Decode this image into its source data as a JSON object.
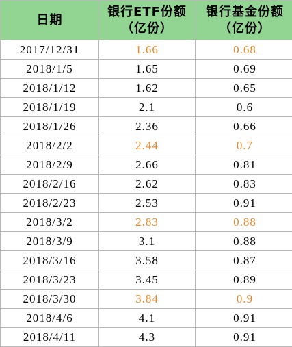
{
  "table": {
    "header": [
      [
        "日期"
      ],
      [
        "银行ETF份额",
        "（亿份）"
      ],
      [
        "银行基金份额",
        "（亿份）"
      ]
    ],
    "header_color": "#92d492",
    "rows": [
      {
        "cells": [
          "2017/12/31",
          1.66,
          0.68
        ],
        "color": "#e0892e"
      },
      {
        "cells": [
          "2018/1/5",
          1.65,
          0.69
        ],
        "color": "#000000"
      },
      {
        "cells": [
          "2018/1/12",
          1.62,
          0.65
        ],
        "color": "#000000"
      },
      {
        "cells": [
          "2018/1/19",
          2.1,
          0.6
        ],
        "color": "#000000"
      },
      {
        "cells": [
          "2018/1/26",
          2.36,
          0.66
        ],
        "color": "#000000"
      },
      {
        "cells": [
          "2018/2/2",
          2.44,
          0.7
        ],
        "color": "#e0892e"
      },
      {
        "cells": [
          "2018/2/9",
          2.66,
          0.81
        ],
        "color": "#000000"
      },
      {
        "cells": [
          "2018/2/16",
          2.62,
          0.83
        ],
        "color": "#000000"
      },
      {
        "cells": [
          "2018/2/23",
          2.53,
          0.91
        ],
        "color": "#000000"
      },
      {
        "cells": [
          "2018/3/2",
          2.83,
          0.88
        ],
        "color": "#e0892e"
      },
      {
        "cells": [
          "2018/3/9",
          3.1,
          0.88
        ],
        "color": "#000000"
      },
      {
        "cells": [
          "2018/3/16",
          3.58,
          0.87
        ],
        "color": "#000000"
      },
      {
        "cells": [
          "2018/3/23",
          3.45,
          0.89
        ],
        "color": "#000000"
      },
      {
        "cells": [
          "2018/3/30",
          3.84,
          0.9
        ],
        "color": "#e0892e"
      },
      {
        "cells": [
          "2018/4/6",
          4.1,
          0.91
        ],
        "color": "#000000"
      },
      {
        "cells": [
          "2018/4/11",
          4.3,
          0.91
        ],
        "color": "#000000"
      }
    ]
  }
}
